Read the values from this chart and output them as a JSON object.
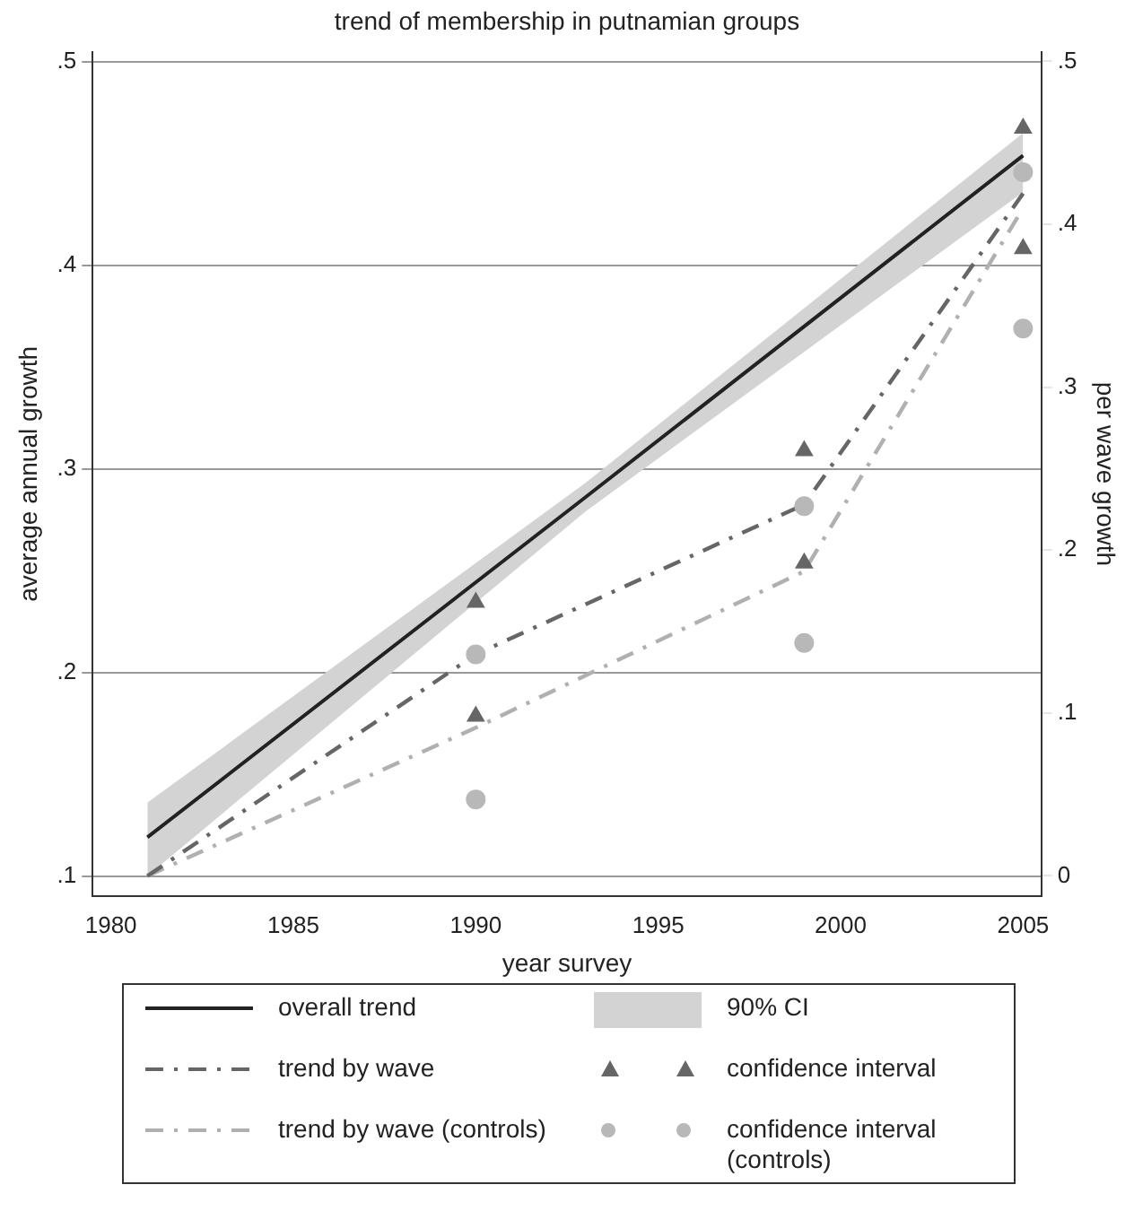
{
  "chart_data": {
    "type": "line",
    "title": "trend of membership in putnamian groups",
    "xlabel": "year survey",
    "ylabel": "average annual growth",
    "y2label": "per wave growth",
    "annotations": [
      "90% CI"
    ],
    "xlim": [
      1979.5,
      2005.5
    ],
    "xticks": [
      1980,
      1985,
      1990,
      1995,
      2000,
      2005
    ],
    "ylim": [
      0.09,
      0.505
    ],
    "yticks": [
      {
        "value": 0.1,
        "label": ".1"
      },
      {
        "value": 0.2,
        "label": ".2"
      },
      {
        "value": 0.3,
        "label": ".3"
      },
      {
        "value": 0.4,
        "label": ".4"
      },
      {
        "value": 0.5,
        "label": ".5"
      }
    ],
    "y2lim": [
      -0.0125,
      0.506
    ],
    "y2ticks": [
      0,
      {
        "value": 0.1,
        "label": ".1"
      },
      {
        "value": 0.2,
        "label": ".2"
      },
      {
        "value": 0.3,
        "label": ".3"
      },
      {
        "value": 0.4,
        "label": ".4"
      },
      {
        "value": 0.5,
        "label": ".5"
      }
    ],
    "grid": "y",
    "legend": "bottom",
    "series": [
      {
        "name": "overall trend",
        "color": "#222222",
        "line_style": "solid",
        "x": [
          1981,
          1993,
          2005
        ],
        "values": [
          0.119,
          0.286,
          0.454
        ],
        "lower": [
          0.1,
          0.279,
          0.436
        ],
        "upper": [
          0.136,
          0.293,
          0.465
        ]
      },
      {
        "name": "trend by wave",
        "axis": "y2",
        "color": "#666666",
        "line_style": "dashed",
        "x": [
          1981,
          1990,
          1999,
          2005
        ],
        "values": [
          0,
          0.136,
          0.228,
          0.419
        ]
      },
      {
        "name": "trend by wave (controls)",
        "axis": "y2",
        "color": "#b0b0b0",
        "line_style": "dashed",
        "x": [
          1981,
          1990,
          1999,
          2005
        ],
        "values": [
          0,
          0.091,
          0.187,
          0.41
        ]
      },
      {
        "name": "confidence interval",
        "type": "scatter",
        "axis": "y2",
        "color": "#666666",
        "marker": "triangle",
        "x": [
          1990,
          1990,
          1999,
          1999,
          2005,
          2005
        ],
        "values": [
          0.168,
          0.098,
          0.261,
          0.192,
          0.459,
          0.385
        ]
      },
      {
        "name": "confidence interval (controls)",
        "type": "scatter",
        "axis": "y2",
        "color": "#b8b8b8",
        "marker": "circle",
        "x": [
          1990,
          1990,
          1999,
          1999,
          2005,
          2005
        ],
        "values": [
          0.136,
          0.047,
          0.227,
          0.143,
          0.432,
          0.336
        ]
      }
    ]
  }
}
